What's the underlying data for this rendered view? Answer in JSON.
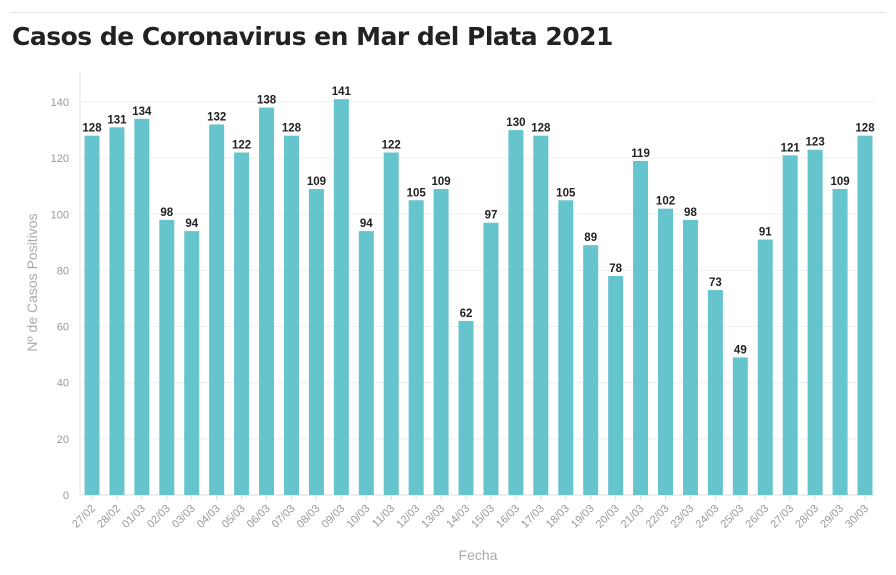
{
  "chart_data": {
    "type": "bar",
    "title": "Casos de Coronavirus en Mar del Plata 2021",
    "xlabel": "Fecha",
    "ylabel": "Nº de Casos Positivos",
    "ylim": [
      0,
      140
    ],
    "yticks": [
      0,
      20,
      40,
      60,
      80,
      100,
      120,
      140
    ],
    "grid": true,
    "color": "#66c4cc",
    "categories": [
      "27/02",
      "28/02",
      "01/03",
      "02/03",
      "03/03",
      "04/03",
      "05/03",
      "06/03",
      "07/03",
      "08/03",
      "09/03",
      "10/03",
      "11/03",
      "12/03",
      "13/03",
      "14/03",
      "15/03",
      "16/03",
      "17/03",
      "18/03",
      "19/03",
      "20/03",
      "21/03",
      "22/03",
      "23/03",
      "24/03",
      "25/03",
      "26/03",
      "27/03",
      "28/03",
      "29/03",
      "30/03"
    ],
    "values": [
      128,
      131,
      134,
      98,
      94,
      132,
      122,
      138,
      128,
      109,
      141,
      94,
      122,
      105,
      109,
      62,
      97,
      130,
      128,
      105,
      89,
      78,
      119,
      102,
      98,
      73,
      49,
      91,
      121,
      123,
      109,
      128
    ]
  }
}
